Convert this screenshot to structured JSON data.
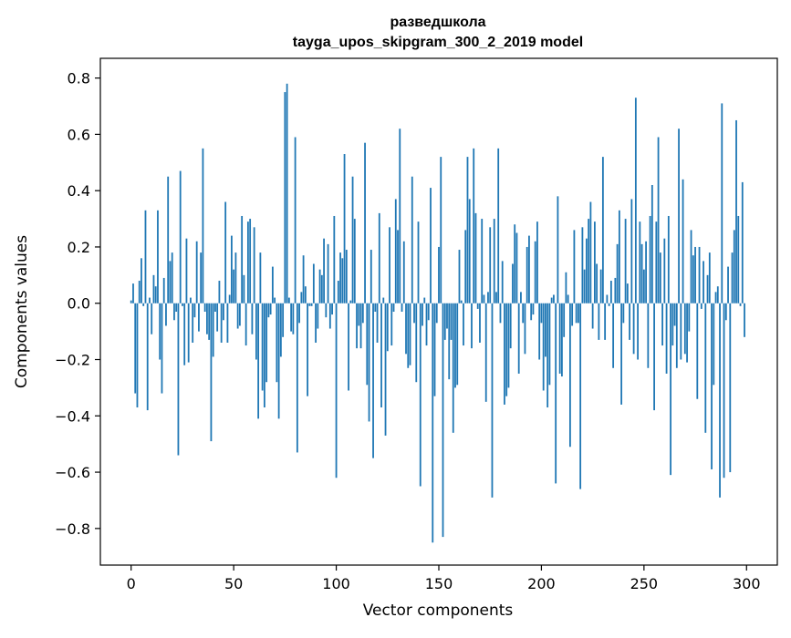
{
  "chart_data": {
    "type": "bar",
    "title_lines": [
      "разведшкола",
      "tayga_upos_skipgram_300_2_2019 model"
    ],
    "xlabel": "Vector components",
    "ylabel": "Components values",
    "xlim": [
      -15,
      315
    ],
    "ylim": [
      -0.93,
      0.87
    ],
    "x_ticks": [
      0,
      50,
      100,
      150,
      200,
      250,
      300
    ],
    "y_ticks": [
      -0.8,
      -0.6,
      -0.4,
      -0.2,
      0.0,
      0.2,
      0.4,
      0.6,
      0.8
    ],
    "x_tick_labels": [
      "0",
      "50",
      "100",
      "150",
      "200",
      "250",
      "300"
    ],
    "y_tick_labels": [
      "−0.8",
      "−0.6",
      "−0.4",
      "−0.2",
      "0.0",
      "0.2",
      "0.4",
      "0.6",
      "0.8"
    ],
    "grid": false,
    "bar_color": "#1f77b4",
    "series": [
      {
        "x_start": 0,
        "values": [
          0.01,
          0.07,
          -0.32,
          -0.37,
          0.08,
          0.16,
          -0.01,
          0.33,
          -0.38,
          0.02,
          -0.11,
          0.1,
          0.06,
          0.33,
          -0.2,
          -0.32,
          0.09,
          -0.08,
          0.45,
          0.15,
          0.18,
          -0.06,
          -0.03,
          -0.54,
          0.47,
          -0.01,
          -0.22,
          0.23,
          -0.21,
          0.02,
          -0.14,
          -0.05,
          0.22,
          -0.1,
          0.18,
          0.55,
          -0.03,
          -0.11,
          -0.13,
          -0.49,
          -0.19,
          -0.03,
          -0.1,
          0.08,
          -0.14,
          -0.06,
          0.36,
          -0.14,
          0.03,
          0.24,
          0.12,
          0.18,
          -0.09,
          -0.08,
          0.31,
          0.1,
          -0.15,
          0.29,
          0.3,
          -0.11,
          0.27,
          -0.2,
          -0.41,
          0.18,
          -0.31,
          -0.37,
          -0.28,
          -0.05,
          -0.04,
          0.13,
          0.02,
          -0.28,
          -0.41,
          -0.19,
          -0.12,
          0.75,
          0.78,
          0.02,
          -0.1,
          -0.11,
          0.59,
          -0.53,
          -0.07,
          0.04,
          0.17,
          0.06,
          -0.33,
          -0.01,
          -0.01,
          0.14,
          -0.14,
          -0.09,
          0.12,
          0.1,
          0.23,
          -0.05,
          0.21,
          -0.09,
          -0.04,
          0.31,
          -0.62,
          0.08,
          0.18,
          0.16,
          0.53,
          0.19,
          -0.31,
          0.01,
          0.45,
          0.3,
          -0.16,
          -0.08,
          -0.16,
          -0.07,
          0.57,
          -0.29,
          -0.42,
          0.19,
          -0.55,
          -0.03,
          -0.14,
          0.32,
          -0.37,
          0.02,
          -0.47,
          -0.17,
          0.27,
          -0.15,
          -0.03,
          0.37,
          0.26,
          0.62,
          -0.03,
          0.22,
          -0.18,
          -0.23,
          -0.22,
          0.45,
          -0.07,
          -0.28,
          0.29,
          -0.65,
          -0.08,
          0.02,
          -0.15,
          -0.06,
          0.41,
          -0.85,
          -0.33,
          -0.07,
          0.2,
          0.52,
          -0.83,
          -0.13,
          -0.09,
          -0.27,
          -0.13,
          -0.46,
          -0.3,
          -0.29,
          0.19,
          0.01,
          -0.15,
          0.26,
          0.52,
          0.37,
          -0.16,
          0.55,
          0.32,
          -0.02,
          -0.14,
          0.3,
          0.03,
          -0.35,
          0.04,
          0.27,
          -0.69,
          0.3,
          0.04,
          0.55,
          -0.07,
          0.15,
          -0.36,
          -0.33,
          -0.3,
          -0.16,
          0.14,
          0.28,
          0.25,
          -0.25,
          0.04,
          -0.07,
          -0.18,
          0.2,
          0.24,
          -0.06,
          -0.04,
          0.22,
          0.29,
          -0.2,
          -0.07,
          -0.31,
          -0.19,
          -0.37,
          -0.29,
          0.02,
          0.03,
          -0.64,
          0.38,
          -0.25,
          -0.26,
          -0.12,
          0.11,
          0.03,
          -0.51,
          -0.08,
          0.26,
          -0.07,
          -0.07,
          -0.66,
          0.27,
          0.12,
          0.23,
          0.3,
          0.36,
          -0.09,
          0.29,
          0.14,
          -0.13,
          0.12,
          0.52,
          -0.13,
          0.03,
          -0.01,
          0.08,
          -0.23,
          0.09,
          0.21,
          0.33,
          -0.36,
          -0.07,
          0.3,
          0.07,
          -0.13,
          0.37,
          -0.18,
          0.73,
          -0.2,
          0.29,
          0.21,
          0.12,
          0.22,
          -0.23,
          0.31,
          0.42,
          -0.38,
          0.29,
          0.59,
          0.18,
          -0.15,
          0.23,
          -0.25,
          0.31,
          -0.61,
          -0.15,
          -0.08,
          -0.23,
          0.62,
          -0.2,
          0.44,
          -0.18,
          -0.21,
          -0.1,
          0.26,
          0.17,
          0.2,
          -0.34,
          0.2,
          -0.02,
          0.15,
          -0.46,
          0.1,
          0.18,
          -0.59,
          -0.29,
          0.04,
          0.06,
          -0.69,
          0.71,
          -0.62,
          -0.06,
          0.13,
          -0.6,
          0.18,
          0.26,
          0.65,
          0.31,
          -0.01,
          0.43,
          -0.12
        ]
      }
    ]
  }
}
